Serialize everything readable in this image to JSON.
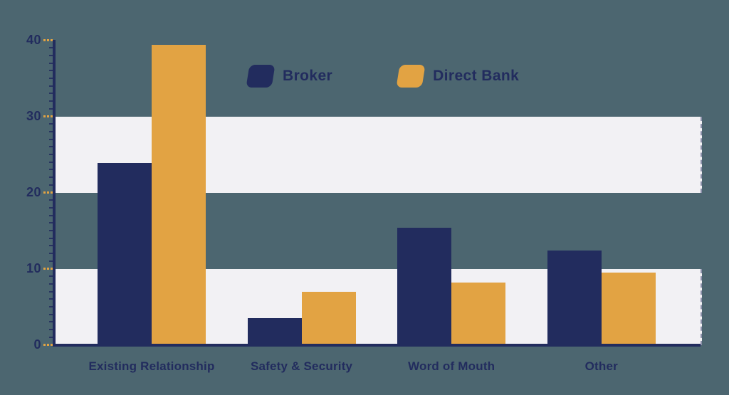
{
  "chart_data": {
    "type": "bar",
    "title": "",
    "xlabel": "",
    "ylabel": "",
    "categories": [
      "Existing Relationship",
      "Safety & Security",
      "Word of Mouth",
      "Other"
    ],
    "series": [
      {
        "name": "Broker",
        "color": "#222C5E",
        "values": [
          23.9,
          3.5,
          15.4,
          12.4
        ]
      },
      {
        "name": "Direct Bank",
        "color": "#E2A343",
        "values": [
          39.4,
          7.0,
          8.2,
          9.5
        ]
      }
    ],
    "ylim": [
      0,
      40
    ],
    "yticks": [
      0,
      10,
      20,
      30,
      40
    ],
    "band_ranges": [
      [
        0,
        10
      ],
      [
        20,
        30
      ]
    ],
    "grid": "horizontal-bands",
    "legend_position": "top-center"
  },
  "colors": {
    "background": "#4C6670",
    "band": "#F2F1F4",
    "navy": "#222C5E",
    "orange": "#E2A343",
    "tick_mark": "#E2A343"
  },
  "legend": {
    "items": [
      {
        "label": "Broker",
        "swatch": "navy-parallelogram-swatch"
      },
      {
        "label": "Direct Bank",
        "swatch": "orange-parallelogram-swatch"
      }
    ]
  }
}
